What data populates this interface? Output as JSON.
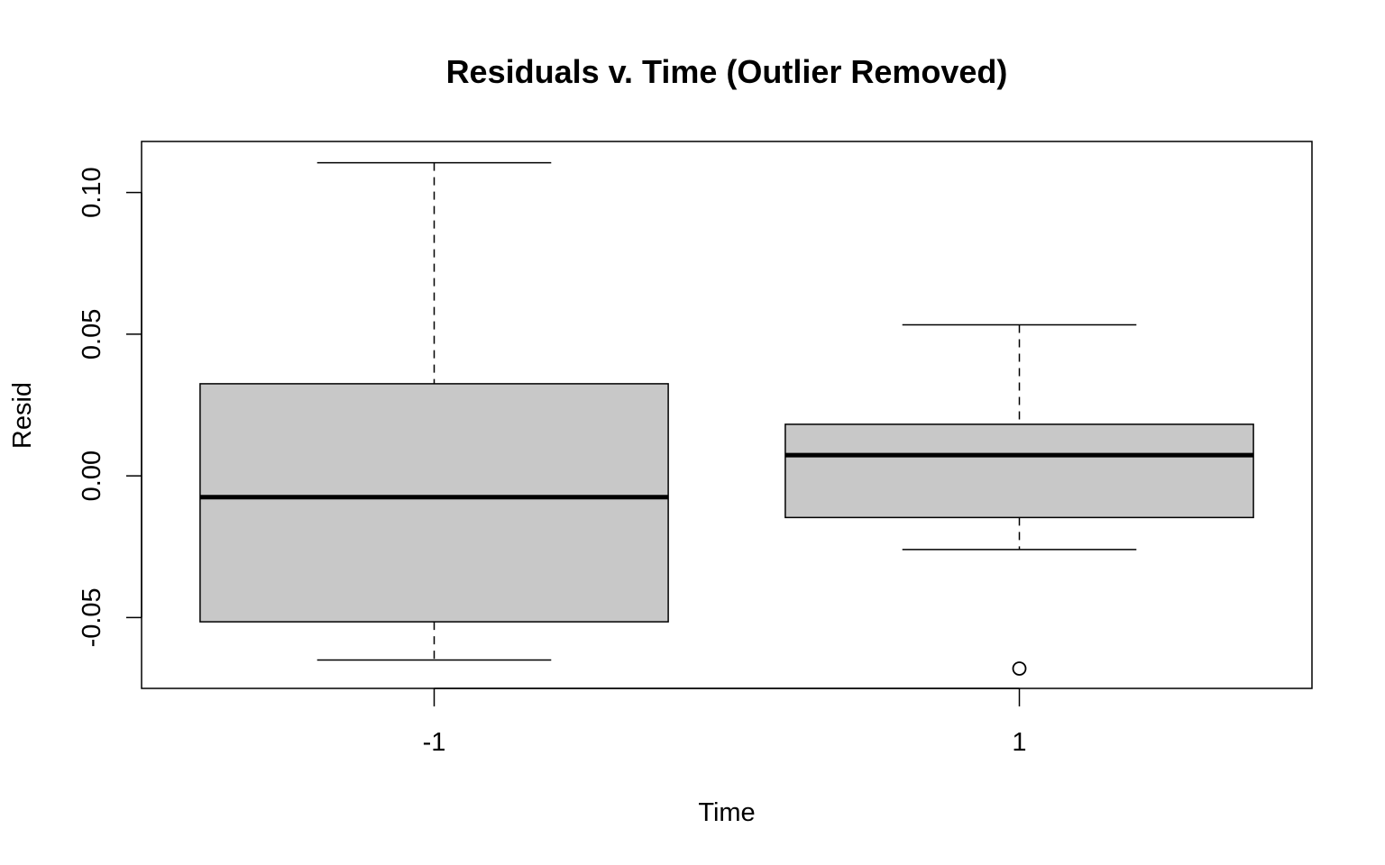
{
  "chart_data": {
    "type": "boxplot",
    "title": "Residuals v. Time (Outlier Removed)",
    "xlabel": "Time",
    "ylabel": "Resid",
    "ylim": [
      -0.075,
      0.118
    ],
    "yticks": [
      -0.05,
      0.0,
      0.05,
      0.1
    ],
    "ytick_labels": [
      "-0.05",
      "0.00",
      "0.05",
      "0.10"
    ],
    "grid": false,
    "box_fill": "#c8c8c8",
    "categories": [
      "-1",
      "1"
    ],
    "boxes": [
      {
        "category": "-1",
        "whisker_low": -0.065,
        "q1": -0.0515,
        "median": -0.0075,
        "q3": 0.0325,
        "whisker_high": 0.1105,
        "outliers": []
      },
      {
        "category": "1",
        "whisker_low": -0.026,
        "q1": -0.0147,
        "median": 0.0073,
        "q3": 0.0182,
        "whisker_high": 0.0533,
        "outliers": [
          -0.068
        ]
      }
    ]
  }
}
